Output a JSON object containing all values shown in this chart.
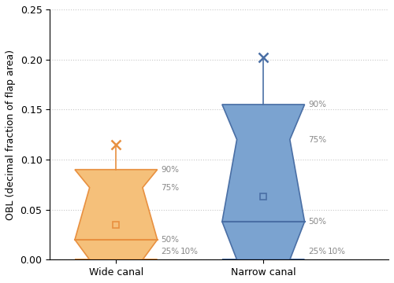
{
  "groups": [
    "Wide canal",
    "Narrow canal"
  ],
  "wide": {
    "p10": 0.0,
    "p25": 0.0,
    "p50": 0.02,
    "p75": 0.072,
    "p90": 0.09,
    "p99": 0.115,
    "mean": 0.035,
    "color_face": "#f5c07a",
    "color_edge": "#e89040",
    "color_marker": "#e89040"
  },
  "narrow": {
    "p10": 0.0,
    "p25": 0.0,
    "p50": 0.038,
    "p75": 0.12,
    "p90": 0.155,
    "p99": 0.202,
    "mean": 0.063,
    "color_face": "#7ba3d0",
    "color_edge": "#4a6fa5",
    "color_marker": "#4a6fa5"
  },
  "hw_full": 0.28,
  "hw_narrow": 0.18,
  "ylabel": "OBL (decimal fraction of flap area)",
  "ylim": [
    0,
    0.25
  ],
  "yticks": [
    0.0,
    0.05,
    0.1,
    0.15,
    0.2,
    0.25
  ],
  "background_color": "#ffffff",
  "grid_color": "#c8c8c8",
  "label_fontsize": 9,
  "tick_fontsize": 9,
  "pct_label_fontsize": 7.5,
  "pct_label_color": "#888888"
}
